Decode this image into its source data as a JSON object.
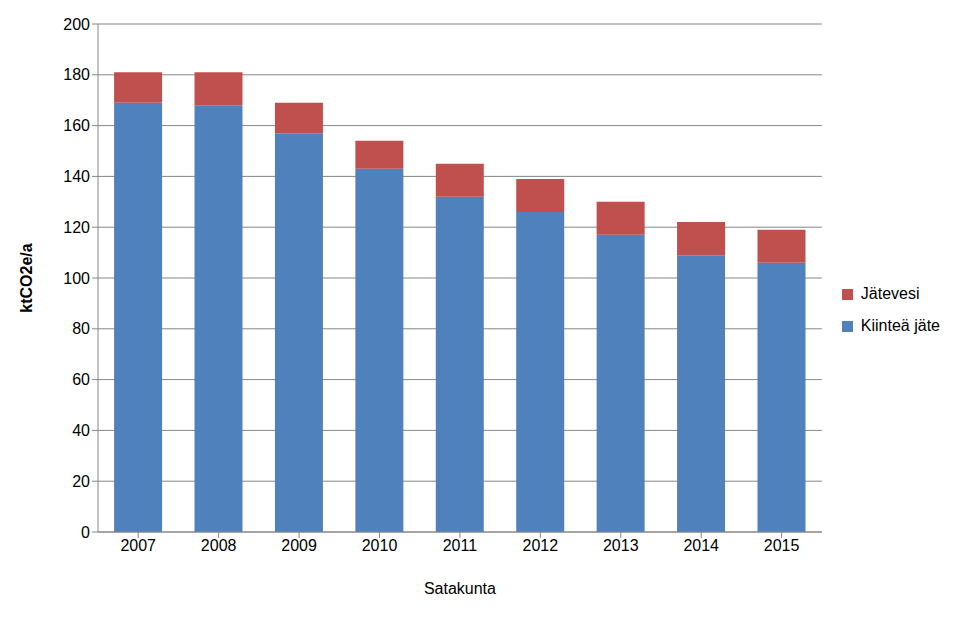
{
  "chart_data": {
    "type": "bar",
    "categories": [
      "2007",
      "2008",
      "2009",
      "2010",
      "2011",
      "2012",
      "2013",
      "2014",
      "2015"
    ],
    "series": [
      {
        "name": "Kiinteä jäte",
        "color": "#4f81bd",
        "values": [
          169,
          168,
          157,
          143,
          132,
          126,
          117,
          109,
          106
        ]
      },
      {
        "name": "Jätevesi",
        "color": "#c0504d",
        "values": [
          12,
          13,
          12,
          11,
          13,
          13,
          13,
          13,
          13
        ]
      }
    ],
    "stacked": true,
    "ylim": [
      0,
      200
    ],
    "yticks": [
      0,
      20,
      40,
      60,
      80,
      100,
      120,
      140,
      160,
      180,
      200
    ],
    "ylabel": "ktCO2e/a",
    "xlabel": "Satakunta",
    "grid": true,
    "legend": "right"
  }
}
